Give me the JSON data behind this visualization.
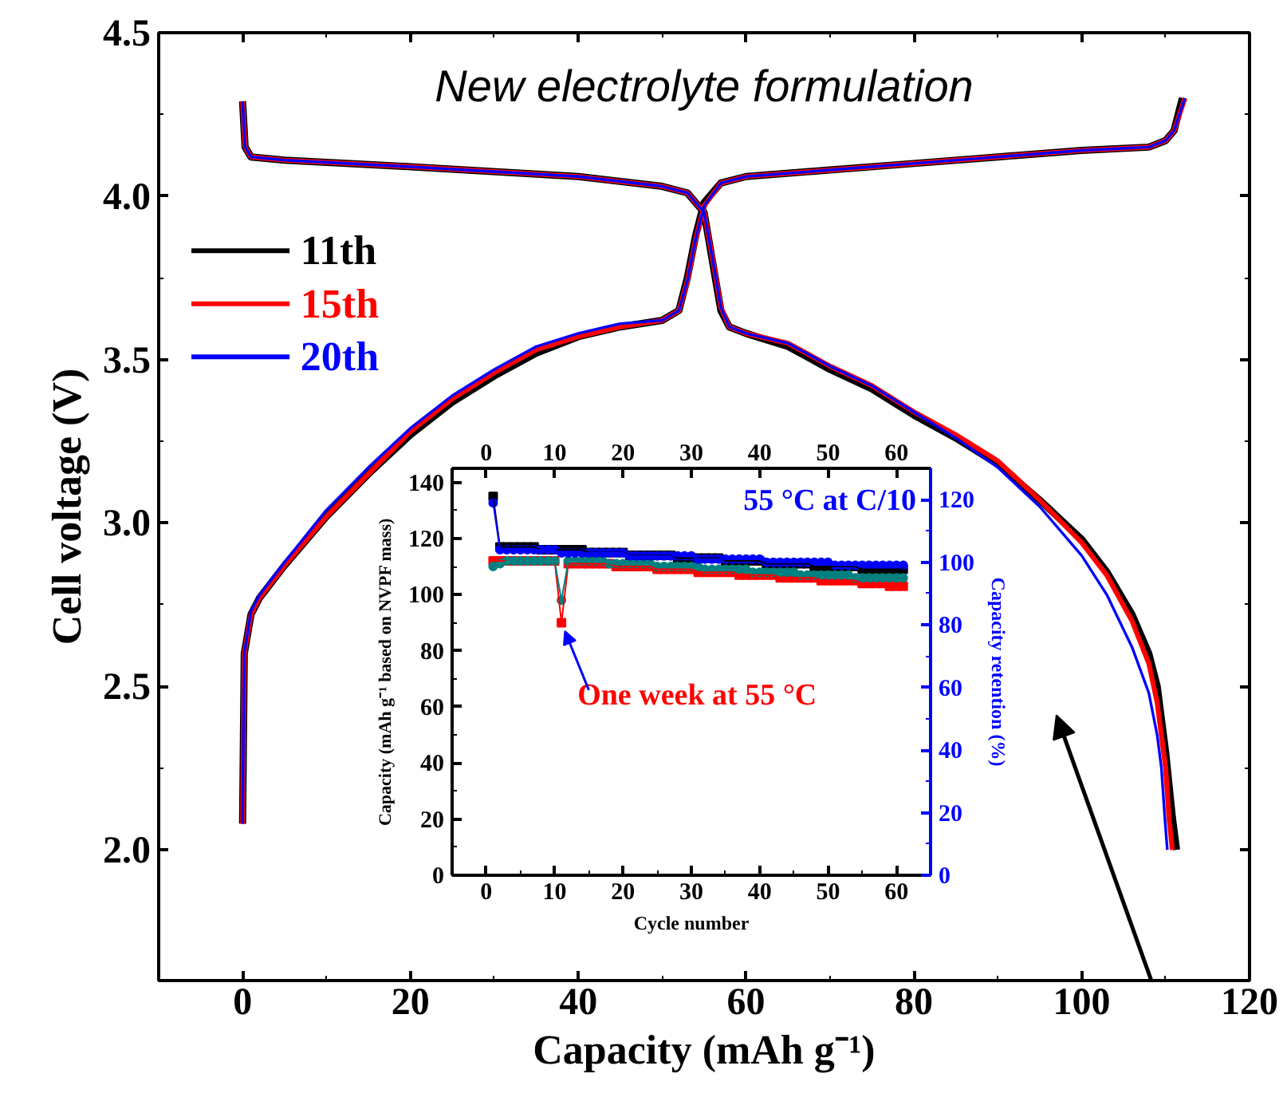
{
  "chart_data": [
    {
      "type": "line",
      "title": "New electrolyte formulation",
      "xlabel": "Capacity (mAh g⁻¹)",
      "ylabel": "Cell voltage (V)",
      "xlim": [
        -10,
        120
      ],
      "ylim": [
        1.6,
        4.5
      ],
      "xticks": [
        0,
        20,
        40,
        60,
        80,
        100,
        120
      ],
      "yticks": [
        {
          "value": 2,
          "label": "2.0"
        },
        {
          "value": 2.5,
          "label": "2.5"
        },
        {
          "value": 3,
          "label": "3.0"
        },
        {
          "value": 3.5,
          "label": "3.5"
        },
        {
          "value": 4,
          "label": "4.0"
        },
        {
          "value": 4.5,
          "label": "4.5"
        }
      ],
      "grid": false,
      "legend": "top left",
      "marker": "none",
      "line_style": "solid",
      "series": [
        {
          "name": "11th",
          "color": "#000000",
          "x": [
            0,
            0.2,
            1,
            2,
            5,
            10,
            15,
            20,
            25,
            30,
            35,
            40,
            45,
            50,
            52,
            53,
            54,
            55,
            57,
            60,
            70,
            80,
            90,
            100,
            108,
            110,
            111,
            112,
            null,
            0,
            0.3,
            1,
            5,
            20,
            40,
            50,
            53,
            55,
            56,
            57,
            58,
            60,
            65,
            70,
            75,
            80,
            85,
            90,
            95,
            100,
            103,
            106,
            108,
            109,
            110,
            110.8,
            111.3
          ],
          "values": [
            2.08,
            2.6,
            2.72,
            2.77,
            2.87,
            3.02,
            3.15,
            3.27,
            3.37,
            3.45,
            3.52,
            3.57,
            3.6,
            3.62,
            3.65,
            3.75,
            3.88,
            3.98,
            4.04,
            4.06,
            4.08,
            4.1,
            4.12,
            4.14,
            4.15,
            4.17,
            4.2,
            4.3,
            null,
            4.29,
            4.15,
            4.12,
            4.11,
            4.09,
            4.06,
            4.03,
            4.01,
            3.95,
            3.8,
            3.65,
            3.6,
            3.58,
            3.54,
            3.47,
            3.41,
            3.33,
            3.26,
            3.18,
            3.07,
            2.95,
            2.85,
            2.72,
            2.6,
            2.5,
            2.3,
            2.1,
            2.0
          ]
        },
        {
          "name": "15th",
          "color": "#ff0000",
          "x": [
            0,
            0.2,
            1,
            2,
            5,
            10,
            15,
            20,
            25,
            30,
            35,
            40,
            45,
            50,
            52,
            53,
            54,
            55,
            57,
            60,
            70,
            80,
            90,
            100,
            108,
            110,
            111,
            112.3,
            null,
            0,
            0.3,
            1,
            5,
            20,
            40,
            50,
            53,
            55,
            56,
            57,
            58,
            60,
            65,
            70,
            75,
            80,
            85,
            90,
            95,
            100,
            103,
            106,
            108,
            109,
            110,
            110.4,
            110.8
          ],
          "values": [
            2.08,
            2.6,
            2.72,
            2.77,
            2.87,
            3.02,
            3.15,
            3.28,
            3.38,
            3.46,
            3.53,
            3.57,
            3.6,
            3.62,
            3.65,
            3.74,
            3.87,
            3.97,
            4.04,
            4.06,
            4.08,
            4.1,
            4.12,
            4.14,
            4.15,
            4.17,
            4.2,
            4.3,
            null,
            4.29,
            4.15,
            4.12,
            4.11,
            4.09,
            4.06,
            4.03,
            4.01,
            3.95,
            3.81,
            3.66,
            3.6,
            3.58,
            3.55,
            3.48,
            3.42,
            3.34,
            3.27,
            3.19,
            3.07,
            2.94,
            2.84,
            2.7,
            2.57,
            2.45,
            2.25,
            2.1,
            2.0
          ]
        },
        {
          "name": "20th",
          "color": "#0000ff",
          "x": [
            0,
            0.2,
            1,
            2,
            5,
            10,
            15,
            20,
            25,
            30,
            35,
            40,
            45,
            50,
            52,
            53,
            54,
            55,
            57,
            60,
            70,
            80,
            90,
            100,
            108,
            110,
            111,
            112.3,
            null,
            0,
            0.3,
            1,
            5,
            20,
            40,
            50,
            53,
            55,
            56,
            57,
            58,
            60,
            65,
            70,
            75,
            80,
            85,
            90,
            95,
            100,
            103,
            106,
            108,
            109,
            109.5,
            109.9,
            110.2
          ],
          "values": [
            2.08,
            2.6,
            2.73,
            2.78,
            2.88,
            3.04,
            3.17,
            3.29,
            3.39,
            3.47,
            3.54,
            3.58,
            3.61,
            3.62,
            3.65,
            3.74,
            3.87,
            3.97,
            4.04,
            4.06,
            4.08,
            4.1,
            4.12,
            4.14,
            4.15,
            4.17,
            4.2,
            4.3,
            null,
            4.29,
            4.15,
            4.12,
            4.11,
            4.09,
            4.06,
            4.03,
            4.01,
            3.95,
            3.81,
            3.66,
            3.6,
            3.58,
            3.55,
            3.48,
            3.42,
            3.34,
            3.26,
            3.17,
            3.05,
            2.9,
            2.78,
            2.62,
            2.48,
            2.35,
            2.25,
            2.1,
            2.0
          ]
        }
      ]
    },
    {
      "type": "line",
      "xlabel": "Cycle number",
      "ylabel": "Capacity (mAh g⁻¹ based on NVPF mass)",
      "y2label": "Capacity retention (%)",
      "xlim": [
        -5,
        65
      ],
      "ylim": [
        0,
        145
      ],
      "y2lim": [
        0,
        130
      ],
      "x2lim": [
        -5,
        65
      ],
      "xticks": [
        0,
        10,
        20,
        30,
        40,
        50,
        60
      ],
      "x2ticks": [
        0,
        10,
        20,
        30,
        40,
        50,
        60
      ],
      "yticks": [
        0,
        20,
        40,
        60,
        80,
        100,
        120,
        140
      ],
      "y2ticks": [
        0,
        20,
        40,
        60,
        80,
        100,
        120
      ],
      "grid": false,
      "line_style": "solid",
      "annotations": [
        "55 °C at C/10",
        {
          "text": "One week at 55 °C",
          "x": 11,
          "y": 90
        }
      ],
      "x": [
        1,
        2,
        3,
        4,
        5,
        6,
        7,
        8,
        9,
        10,
        11,
        12,
        13,
        14,
        15,
        16,
        17,
        18,
        19,
        20,
        21,
        22,
        23,
        24,
        25,
        26,
        27,
        28,
        29,
        30,
        31,
        32,
        33,
        34,
        35,
        36,
        37,
        38,
        39,
        40,
        41,
        42,
        43,
        44,
        45,
        46,
        47,
        48,
        49,
        50,
        51,
        52,
        53,
        54,
        55,
        56,
        57,
        58,
        59,
        60,
        61
      ],
      "series": [
        {
          "color": "#000000",
          "marker": "square",
          "values": [
            135,
            117,
            117,
            117,
            117,
            117,
            117,
            116,
            116,
            116,
            116,
            116,
            116,
            116,
            115,
            115,
            115,
            115,
            115,
            115,
            114,
            114,
            114,
            114,
            114,
            114,
            114,
            113,
            113,
            113,
            113,
            113,
            113,
            113,
            112,
            112,
            112,
            112,
            112,
            112,
            111,
            111,
            111,
            111,
            111,
            111,
            111,
            110,
            110,
            110,
            110,
            110,
            110,
            110,
            109,
            109,
            109,
            109,
            109,
            109,
            109
          ]
        },
        {
          "color": "#ff0000",
          "marker": "square",
          "values": [
            112,
            112,
            112,
            112,
            112,
            112,
            112,
            112,
            112,
            112,
            90,
            111,
            111,
            111,
            111,
            111,
            111,
            111,
            110,
            110,
            110,
            110,
            110,
            110,
            109,
            109,
            109,
            109,
            109,
            109,
            108,
            108,
            108,
            108,
            108,
            108,
            107,
            107,
            107,
            107,
            107,
            107,
            106,
            106,
            106,
            106,
            106,
            106,
            105,
            105,
            105,
            105,
            105,
            105,
            104,
            104,
            104,
            104,
            103,
            103,
            103
          ]
        },
        {
          "color": "#008080",
          "marker": "circle",
          "values": [
            110,
            111,
            112,
            112,
            112,
            112,
            112,
            112,
            112,
            112,
            98,
            112,
            112,
            112,
            112,
            112,
            112,
            111,
            111,
            111,
            111,
            111,
            111,
            111,
            110,
            110,
            110,
            110,
            110,
            110,
            110,
            109,
            109,
            109,
            109,
            109,
            109,
            109,
            108,
            108,
            108,
            108,
            108,
            108,
            108,
            107,
            107,
            107,
            107,
            107,
            107,
            107,
            107,
            106,
            106,
            106,
            106,
            106,
            106,
            106,
            106
          ]
        },
        {
          "color": "#0000ff",
          "marker": "circle",
          "axis": "y2",
          "values": [
            119,
            104,
            104,
            104,
            104,
            104,
            104,
            104,
            104,
            104,
            103,
            103,
            103,
            103,
            103,
            103,
            103,
            103,
            103,
            103,
            102,
            102,
            102,
            102,
            102,
            102,
            102,
            102,
            102,
            102,
            101,
            101,
            101,
            101,
            101,
            101,
            101,
            101,
            101,
            101,
            100,
            100,
            100,
            100,
            100,
            100,
            100,
            100,
            100,
            100,
            99,
            99,
            99,
            99,
            99,
            99,
            99,
            99,
            99,
            99,
            99
          ]
        }
      ]
    }
  ]
}
